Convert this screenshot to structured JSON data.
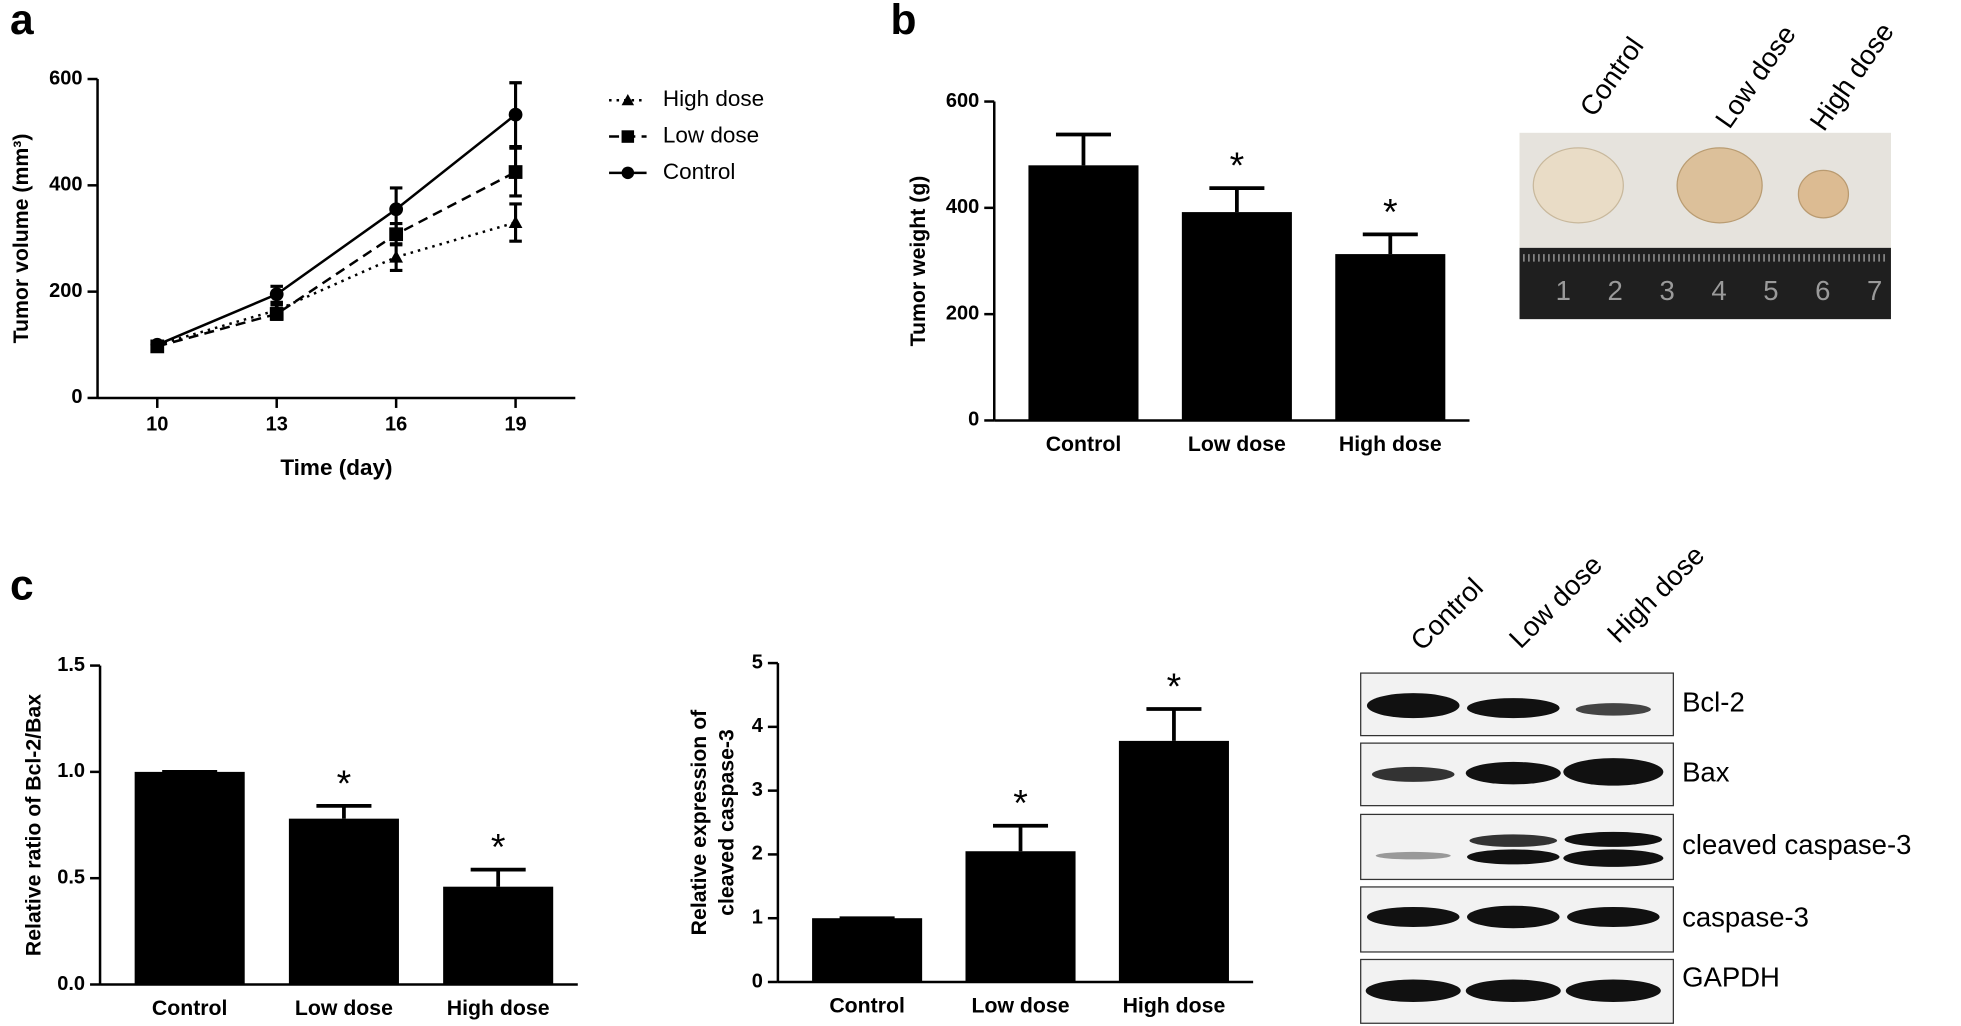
{
  "panels": [
    "a",
    "b",
    "c"
  ],
  "chart_data": [
    {
      "type": "line",
      "x_label": "Time (day)",
      "y_label": "Tumor volume (mm³)",
      "x": [
        10,
        13,
        16,
        19
      ],
      "xlim": [
        8.5,
        20.5
      ],
      "xticks": [
        10,
        13,
        16,
        19
      ],
      "ylim": [
        0,
        600
      ],
      "yticks": [
        0,
        200,
        400,
        600
      ],
      "series": [
        {
          "name": "High dose",
          "color": "#000000",
          "line_style": "dotted",
          "marker": "triangle",
          "values": [
            100,
            165,
            265,
            330
          ],
          "errors": [
            5,
            10,
            25,
            35
          ]
        },
        {
          "name": "Low dose",
          "color": "#000000",
          "line_style": "dashed",
          "marker": "square",
          "values": [
            97,
            158,
            308,
            425
          ],
          "errors": [
            5,
            10,
            20,
            45
          ]
        },
        {
          "name": "Control",
          "color": "#000000",
          "line_style": "solid",
          "marker": "circle",
          "values": [
            100,
            195,
            355,
            533
          ],
          "errors": [
            5,
            15,
            40,
            60
          ]
        }
      ]
    },
    {
      "type": "bar",
      "y_label": "Tumor weight (g)",
      "categories": [
        "Control",
        "Low dose",
        "High dose"
      ],
      "values": [
        480,
        392,
        313
      ],
      "errors": [
        58,
        45,
        37
      ],
      "significance": [
        null,
        "*",
        "*"
      ],
      "color": "#000000",
      "ylim": [
        0,
        600
      ],
      "yticks": [
        0,
        200,
        400,
        600
      ]
    },
    {
      "type": "bar",
      "y_label": "Relative ratio of Bcl-2/Bax",
      "categories": [
        "Control",
        "Low dose",
        "High dose"
      ],
      "values": [
        1.0,
        0.78,
        0.46
      ],
      "errors": [
        0,
        0.06,
        0.08
      ],
      "significance": [
        null,
        "*",
        "*"
      ],
      "color": "#000000",
      "ylim": [
        0,
        1.5
      ],
      "yticks": [
        {
          "value": 0,
          "label": "0.0"
        },
        0.5,
        {
          "value": 1,
          "label": "1.0"
        },
        1.5
      ]
    },
    {
      "type": "bar",
      "y_label": [
        "Relative expression of",
        "cleaved caspase-3"
      ],
      "categories": [
        "Control",
        "Low dose",
        "High dose"
      ],
      "values": [
        1,
        2.05,
        3.78
      ],
      "errors": [
        0,
        0.4,
        0.5
      ],
      "significance": [
        null,
        "*",
        "*"
      ],
      "color": "#000000",
      "ylim": [
        0,
        5
      ],
      "yticks": [
        0,
        1,
        2,
        3,
        4,
        5
      ]
    }
  ],
  "photo": {
    "labels": [
      "Control",
      "Low dose",
      "High dose"
    ],
    "ruler": [
      "1",
      "2",
      "3",
      "4",
      "5",
      "6",
      "7"
    ]
  },
  "blot": {
    "lanes": [
      "Control",
      "Low dose",
      "High dose"
    ],
    "bands": [
      "Bcl-2",
      "Bax",
      "cleaved caspase-3",
      "caspase-3",
      "GAPDH"
    ]
  }
}
